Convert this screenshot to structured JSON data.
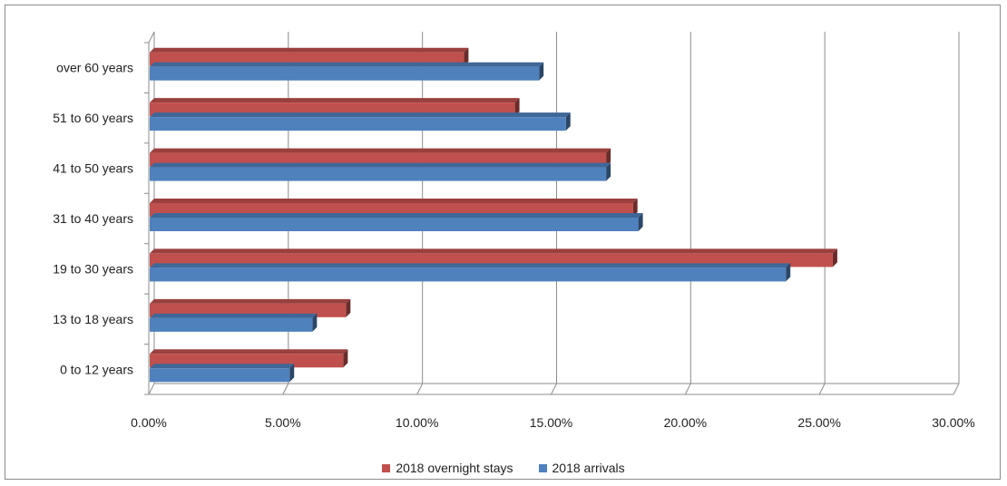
{
  "chart_data": {
    "type": "bar",
    "orientation": "horizontal",
    "categories": [
      "0 to 12 years",
      "13 to 18 years",
      "19 to 30 years",
      "31 to 40 years",
      "41 to 50 years",
      "51 to 60 years",
      "over 60 years"
    ],
    "series": [
      {
        "name": "2018 overnight stays",
        "color": "#c0504d",
        "values": [
          7.25,
          7.35,
          25.5,
          18.05,
          17.05,
          13.65,
          11.75
        ]
      },
      {
        "name": "2018 arrivals",
        "color": "#4f81bd",
        "values": [
          5.25,
          6.1,
          23.75,
          18.25,
          17.05,
          15.55,
          14.55
        ]
      }
    ],
    "x_ticks": [
      "0.00%",
      "5.00%",
      "10.00%",
      "15.00%",
      "20.00%",
      "25.00%",
      "30.00%"
    ],
    "xlim": [
      0,
      30
    ],
    "grid": "vertical major gridlines",
    "legend_position": "bottom"
  }
}
